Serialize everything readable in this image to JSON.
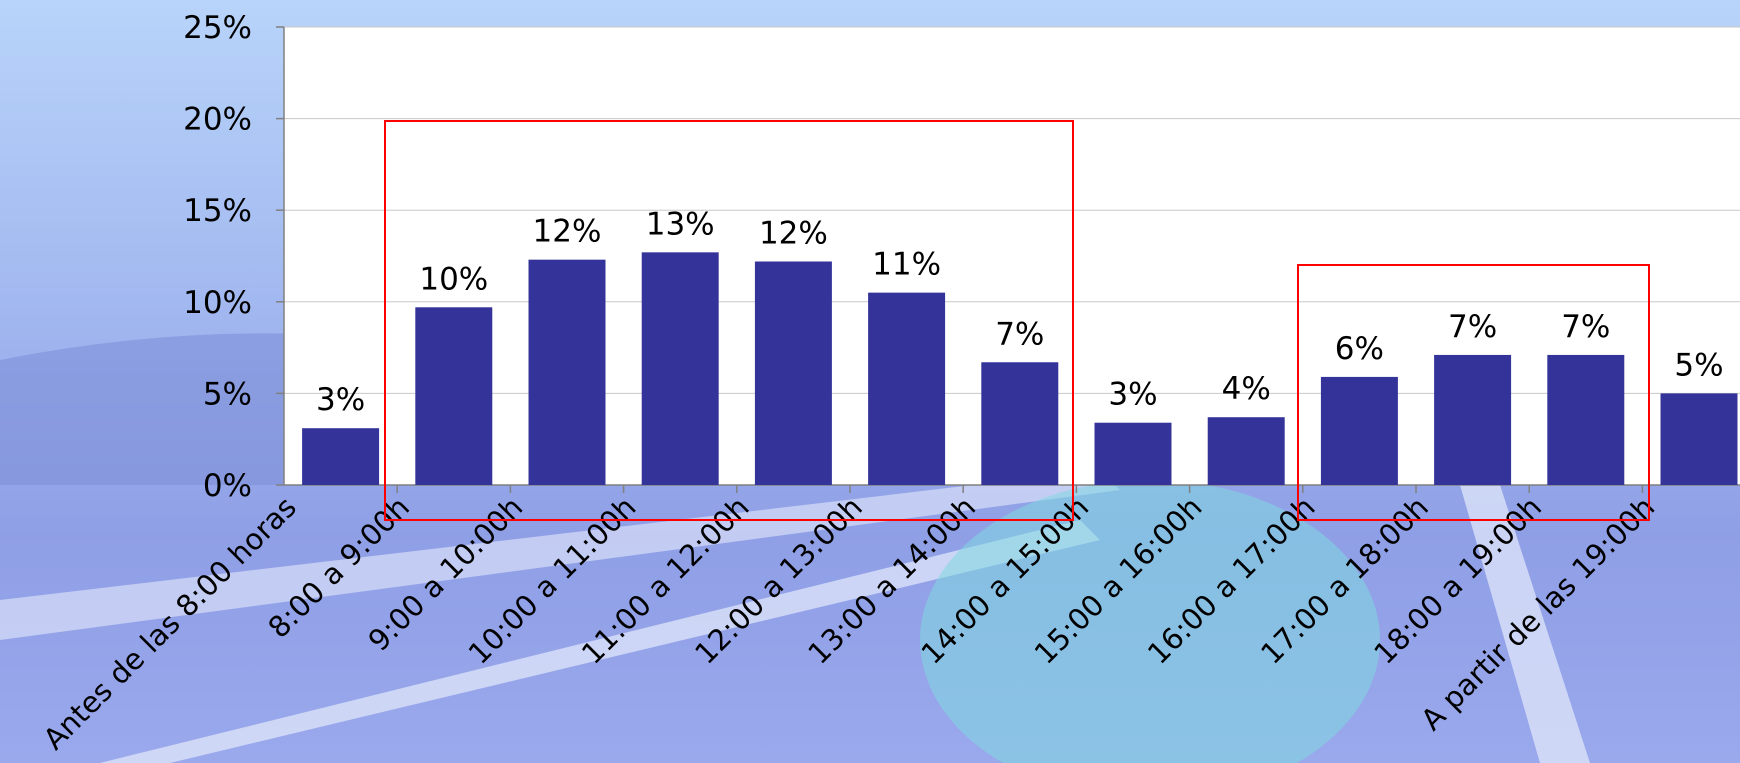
{
  "chart_data": {
    "type": "bar",
    "categories": [
      "Antes de las 8:00 horas",
      "8:00 a 9:00h",
      "9:00 a 10:00h",
      "10:00 a 11:00h",
      "11:00 a 12:00h",
      "12:00 a 13:00h",
      "13:00 a 14:00h",
      "14:00 a 15:00h",
      "15:00 a 16:00h",
      "16:00 a 17:00h",
      "17:00 a 18:00h",
      "18:00 a 19:00h",
      "A partir de las 19:00h"
    ],
    "values": [
      3.1,
      9.7,
      12.3,
      12.7,
      12.2,
      10.5,
      6.7,
      3.4,
      3.7,
      5.9,
      7.1,
      7.1,
      5.0
    ],
    "value_labels": [
      "3%",
      "10%",
      "12%",
      "13%",
      "12%",
      "11%",
      "7%",
      "3%",
      "4%",
      "6%",
      "7%",
      "7%",
      "5%"
    ],
    "color": "#333399",
    "ylim": [
      0,
      25
    ],
    "yticks": [
      {
        "value": 0,
        "label": "0%"
      },
      {
        "value": 5,
        "label": "5%"
      },
      {
        "value": 10,
        "label": "10%"
      },
      {
        "value": 15,
        "label": "15%"
      },
      {
        "value": 20,
        "label": "20%"
      },
      {
        "value": 25,
        "label": "25%"
      }
    ],
    "grid": true
  }
}
